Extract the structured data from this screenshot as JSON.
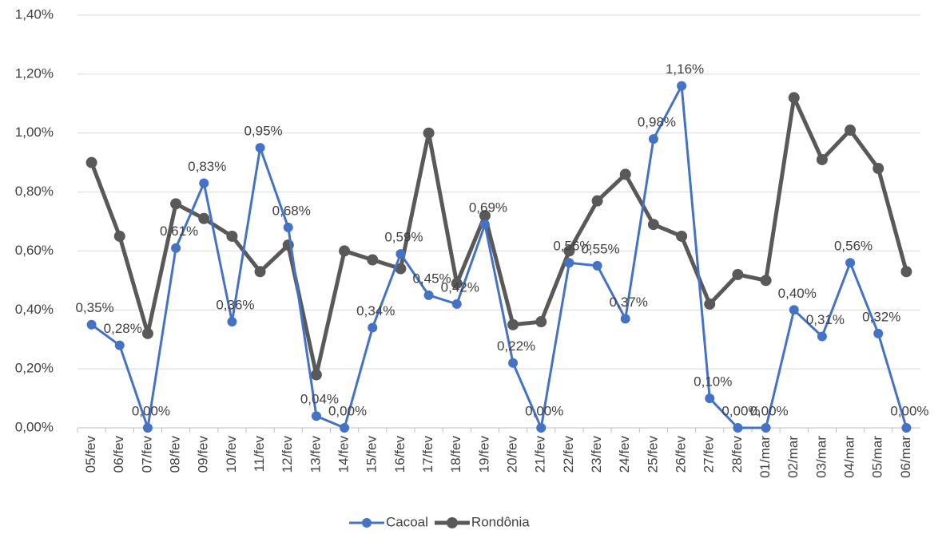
{
  "chart_data": {
    "type": "line",
    "categories": [
      "05/fev",
      "06/fev",
      "07/fev",
      "08/fev",
      "09/fev",
      "10/fev",
      "11/fev",
      "12/fev",
      "13/fev",
      "14/fev",
      "15/fev",
      "16/fev",
      "17/fev",
      "18/fev",
      "19/fev",
      "20/fev",
      "21/fev",
      "22/fev",
      "23/fev",
      "24/fev",
      "25/fev",
      "26/fev",
      "27/fev",
      "28/fev",
      "01/mar",
      "02/mar",
      "03/mar",
      "04/mar",
      "05/mar",
      "06/mar"
    ],
    "series": [
      {
        "name": "Cacoal",
        "color": "#4472c4",
        "values": [
          0.35,
          0.28,
          0.0,
          0.61,
          0.83,
          0.36,
          0.95,
          0.68,
          0.04,
          0.0,
          0.34,
          0.59,
          0.45,
          0.42,
          0.69,
          0.22,
          0.0,
          0.56,
          0.55,
          0.37,
          0.98,
          1.16,
          0.1,
          0.0,
          0.0,
          0.4,
          0.31,
          0.56,
          0.32,
          0.0
        ],
        "value_labels": [
          "0,35%",
          "0,28%",
          "0,00%",
          "0,61%",
          "0,83%",
          "0,36%",
          "0,95%",
          "0,68%",
          "0,04%",
          "0,00%",
          "0,34%",
          "0,59%",
          "0,45%",
          "0,42%",
          "0,69%",
          "0,22%",
          "0,00%",
          "0,56%",
          "0,55%",
          "0,37%",
          "0,98%",
          "1,16%",
          "0,10%",
          "0,00%",
          "0,00%",
          "0,40%",
          "0,31%",
          "0,56%",
          "0,32%",
          "0,00%"
        ]
      },
      {
        "name": "Rondônia",
        "color": "#595959",
        "values": [
          0.9,
          0.65,
          0.32,
          0.76,
          0.71,
          0.65,
          0.53,
          0.62,
          0.18,
          0.6,
          0.57,
          0.54,
          1.0,
          0.49,
          0.72,
          0.35,
          0.36,
          0.6,
          0.77,
          0.86,
          0.69,
          0.65,
          0.42,
          0.52,
          0.5,
          1.12,
          0.91,
          1.01,
          0.88,
          0.53
        ]
      }
    ],
    "ylim": [
      0,
      1.4
    ],
    "yticks": [
      {
        "value": 0,
        "label": "0,00%"
      },
      {
        "value": 0.2,
        "label": "0,20%"
      },
      {
        "value": 0.4,
        "label": "0,40%"
      },
      {
        "value": 0.6,
        "label": "0,60%"
      },
      {
        "value": 0.8,
        "label": "0,80%"
      },
      {
        "value": 1.0,
        "label": "1,00%"
      },
      {
        "value": 1.2,
        "label": "1,20%"
      },
      {
        "value": 1.4,
        "label": "1,40%"
      }
    ],
    "grid": true,
    "legend": "bottom"
  }
}
